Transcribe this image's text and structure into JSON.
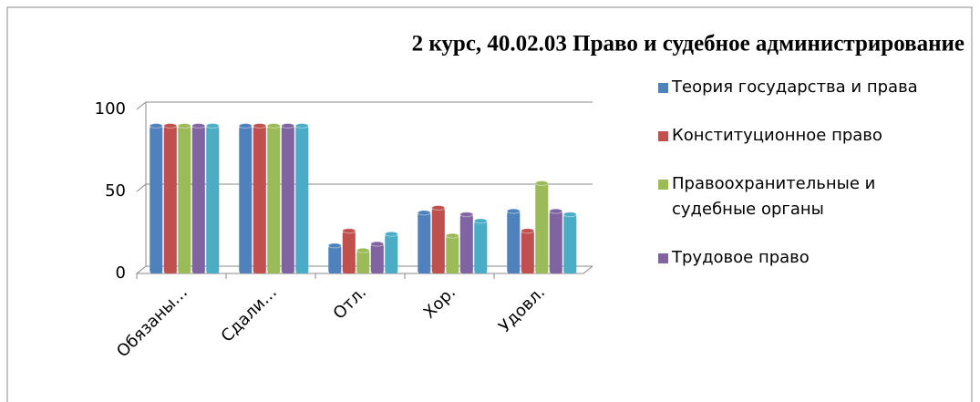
{
  "chart_data": {
    "type": "bar",
    "title": "2 курс, 40.02.03 Право и судебное администрирование",
    "categories": [
      "Обязаны…",
      "Сдали…",
      "Отл.",
      "Хор.",
      "Удовл."
    ],
    "series": [
      {
        "name": "Теория государства и права",
        "color": "#4f81bd",
        "values": [
          90,
          90,
          17,
          37,
          38
        ]
      },
      {
        "name": "Конституционное право",
        "color": "#c0504d",
        "values": [
          90,
          90,
          26,
          40,
          26
        ]
      },
      {
        "name": "Правоохранительные и судебные органы",
        "color": "#9bbb59",
        "values": [
          90,
          90,
          14,
          23,
          55
        ]
      },
      {
        "name": "Трудовое право",
        "color": "#8064a2",
        "values": [
          90,
          90,
          18,
          36,
          38
        ]
      },
      {
        "color": "#4bacc6",
        "values": [
          90,
          90,
          24,
          32,
          36
        ]
      }
    ],
    "ylim": [
      0,
      100
    ],
    "yticks": [
      0,
      50,
      100
    ],
    "grid": true
  }
}
